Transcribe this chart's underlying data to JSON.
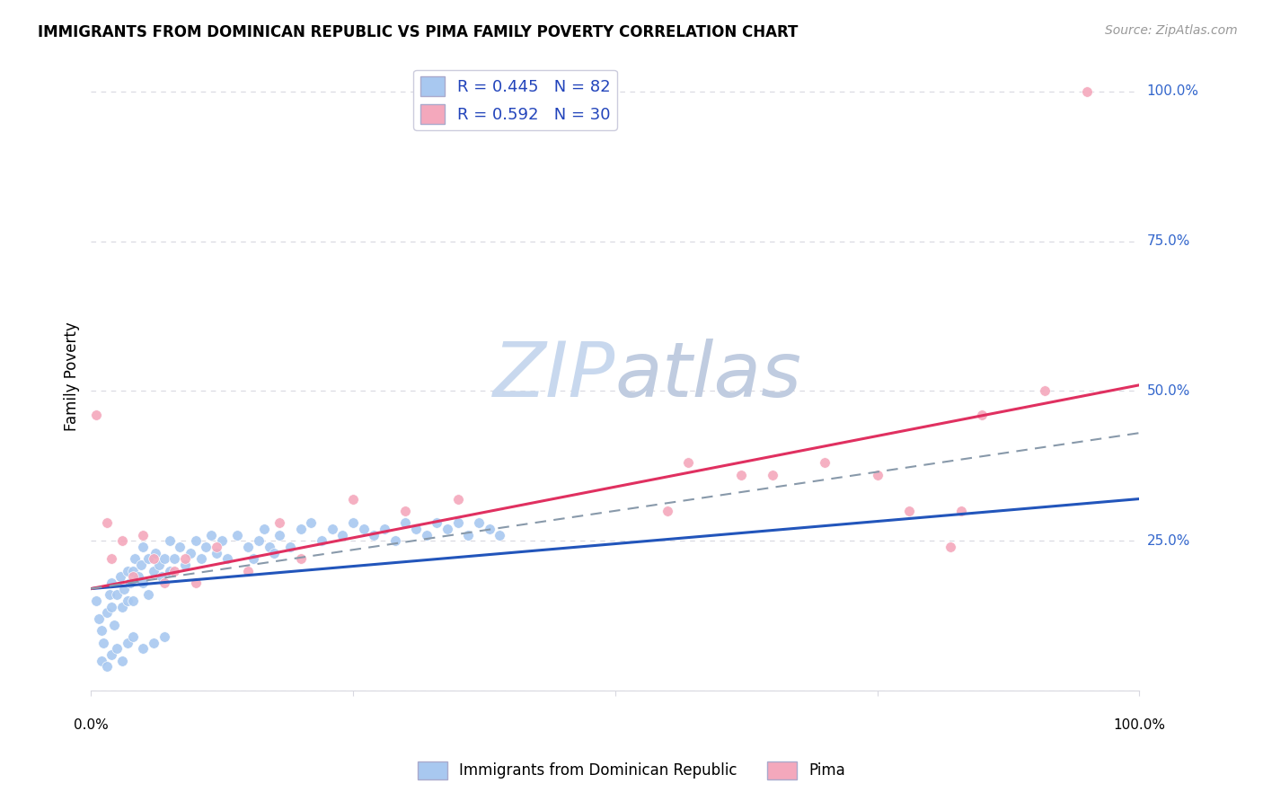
{
  "title": "IMMIGRANTS FROM DOMINICAN REPUBLIC VS PIMA FAMILY POVERTY CORRELATION CHART",
  "source": "Source: ZipAtlas.com",
  "ylabel": "Family Poverty",
  "ytick_labels": [
    "0.0%",
    "25.0%",
    "50.0%",
    "75.0%",
    "100.0%"
  ],
  "ytick_values": [
    0,
    25,
    50,
    75,
    100
  ],
  "blue_color": "#A8C8F0",
  "pink_color": "#F4A8BC",
  "blue_line_color": "#2255BB",
  "pink_line_color": "#E03060",
  "dashed_line_color": "#8899AA",
  "watermark_zip_color": "#C8D8EE",
  "watermark_atlas_color": "#C0CCE0",
  "blue_scatter": [
    [
      0.5,
      15.0
    ],
    [
      0.8,
      12.0
    ],
    [
      1.0,
      10.0
    ],
    [
      1.2,
      8.0
    ],
    [
      1.5,
      13.0
    ],
    [
      1.8,
      16.0
    ],
    [
      2.0,
      14.0
    ],
    [
      2.0,
      18.0
    ],
    [
      2.2,
      11.0
    ],
    [
      2.5,
      16.0
    ],
    [
      2.8,
      19.0
    ],
    [
      3.0,
      14.0
    ],
    [
      3.2,
      17.0
    ],
    [
      3.5,
      20.0
    ],
    [
      3.5,
      15.0
    ],
    [
      3.8,
      18.0
    ],
    [
      4.0,
      20.0
    ],
    [
      4.0,
      15.0
    ],
    [
      4.2,
      22.0
    ],
    [
      4.5,
      19.0
    ],
    [
      4.8,
      21.0
    ],
    [
      5.0,
      18.0
    ],
    [
      5.0,
      24.0
    ],
    [
      5.5,
      22.0
    ],
    [
      5.5,
      16.0
    ],
    [
      6.0,
      20.0
    ],
    [
      6.2,
      23.0
    ],
    [
      6.5,
      21.0
    ],
    [
      6.8,
      19.0
    ],
    [
      7.0,
      22.0
    ],
    [
      7.5,
      20.0
    ],
    [
      7.5,
      25.0
    ],
    [
      8.0,
      22.0
    ],
    [
      8.5,
      24.0
    ],
    [
      9.0,
      21.0
    ],
    [
      9.5,
      23.0
    ],
    [
      10.0,
      25.0
    ],
    [
      10.5,
      22.0
    ],
    [
      11.0,
      24.0
    ],
    [
      11.5,
      26.0
    ],
    [
      12.0,
      23.0
    ],
    [
      12.5,
      25.0
    ],
    [
      13.0,
      22.0
    ],
    [
      14.0,
      26.0
    ],
    [
      15.0,
      24.0
    ],
    [
      15.5,
      22.0
    ],
    [
      16.0,
      25.0
    ],
    [
      16.5,
      27.0
    ],
    [
      17.0,
      24.0
    ],
    [
      17.5,
      23.0
    ],
    [
      18.0,
      26.0
    ],
    [
      19.0,
      24.0
    ],
    [
      20.0,
      27.0
    ],
    [
      21.0,
      28.0
    ],
    [
      22.0,
      25.0
    ],
    [
      23.0,
      27.0
    ],
    [
      24.0,
      26.0
    ],
    [
      25.0,
      28.0
    ],
    [
      26.0,
      27.0
    ],
    [
      27.0,
      26.0
    ],
    [
      28.0,
      27.0
    ],
    [
      29.0,
      25.0
    ],
    [
      30.0,
      28.0
    ],
    [
      31.0,
      27.0
    ],
    [
      32.0,
      26.0
    ],
    [
      33.0,
      28.0
    ],
    [
      34.0,
      27.0
    ],
    [
      35.0,
      28.0
    ],
    [
      36.0,
      26.0
    ],
    [
      37.0,
      28.0
    ],
    [
      38.0,
      27.0
    ],
    [
      39.0,
      26.0
    ],
    [
      1.0,
      5.0
    ],
    [
      1.5,
      4.0
    ],
    [
      2.0,
      6.0
    ],
    [
      2.5,
      7.0
    ],
    [
      3.0,
      5.0
    ],
    [
      3.5,
      8.0
    ],
    [
      4.0,
      9.0
    ],
    [
      5.0,
      7.0
    ],
    [
      6.0,
      8.0
    ],
    [
      7.0,
      9.0
    ]
  ],
  "pink_scatter": [
    [
      0.5,
      46.0
    ],
    [
      1.5,
      28.0
    ],
    [
      2.0,
      22.0
    ],
    [
      3.0,
      25.0
    ],
    [
      4.0,
      19.0
    ],
    [
      5.0,
      26.0
    ],
    [
      6.0,
      22.0
    ],
    [
      7.0,
      18.0
    ],
    [
      8.0,
      20.0
    ],
    [
      9.0,
      22.0
    ],
    [
      10.0,
      18.0
    ],
    [
      12.0,
      24.0
    ],
    [
      15.0,
      20.0
    ],
    [
      18.0,
      28.0
    ],
    [
      20.0,
      22.0
    ],
    [
      25.0,
      32.0
    ],
    [
      30.0,
      30.0
    ],
    [
      35.0,
      32.0
    ],
    [
      55.0,
      30.0
    ],
    [
      57.0,
      38.0
    ],
    [
      62.0,
      36.0
    ],
    [
      65.0,
      36.0
    ],
    [
      70.0,
      38.0
    ],
    [
      75.0,
      36.0
    ],
    [
      78.0,
      30.0
    ],
    [
      82.0,
      24.0
    ],
    [
      83.0,
      30.0
    ],
    [
      85.0,
      46.0
    ],
    [
      91.0,
      50.0
    ],
    [
      95.0,
      100.0
    ]
  ],
  "blue_trend_x": [
    0,
    100
  ],
  "blue_trend_y": [
    17.0,
    32.0
  ],
  "pink_trend_x": [
    0,
    100
  ],
  "pink_trend_y": [
    17.0,
    51.0
  ],
  "dashed_trend_x": [
    0,
    100
  ],
  "dashed_trend_y": [
    17.0,
    43.0
  ],
  "xlim": [
    0,
    100
  ],
  "ylim": [
    0,
    105
  ],
  "grid_color": "#D8D8E0",
  "legend_label1": "R = 0.445   N = 82",
  "legend_label2": "R = 0.592   N = 30",
  "bottom_legend_label1": "Immigrants from Dominican Republic",
  "bottom_legend_label2": "Pima"
}
